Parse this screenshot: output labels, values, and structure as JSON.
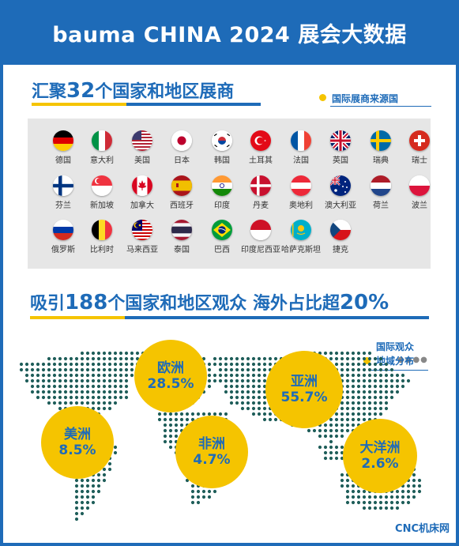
{
  "header": {
    "title": "bauma CHINA 2024 展会大数据"
  },
  "exhibitors": {
    "heading_pre": "汇聚",
    "heading_num": "32",
    "heading_post": "个国家和地区展商",
    "callout": "国际展商来源国",
    "countries": [
      {
        "name": "德国",
        "flag": "germany-flag"
      },
      {
        "name": "意大利",
        "flag": "italy-flag"
      },
      {
        "name": "美国",
        "flag": "usa-flag"
      },
      {
        "name": "日本",
        "flag": "japan-flag"
      },
      {
        "name": "韩国",
        "flag": "korea-flag"
      },
      {
        "name": "土耳其",
        "flag": "turkey-flag"
      },
      {
        "name": "法国",
        "flag": "france-flag"
      },
      {
        "name": "英国",
        "flag": "uk-flag"
      },
      {
        "name": "瑞典",
        "flag": "sweden-flag"
      },
      {
        "name": "瑞士",
        "flag": "switzerland-flag"
      },
      {
        "name": "芬兰",
        "flag": "finland-flag"
      },
      {
        "name": "新加坡",
        "flag": "singapore-flag"
      },
      {
        "name": "加拿大",
        "flag": "canada-flag"
      },
      {
        "name": "西班牙",
        "flag": "spain-flag"
      },
      {
        "name": "印度",
        "flag": "india-flag"
      },
      {
        "name": "丹麦",
        "flag": "denmark-flag"
      },
      {
        "name": "奥地利",
        "flag": "austria-flag"
      },
      {
        "name": "澳大利亚",
        "flag": "australia-flag"
      },
      {
        "name": "荷兰",
        "flag": "netherlands-flag"
      },
      {
        "name": "波兰",
        "flag": "poland-flag"
      },
      {
        "name": "俄罗斯",
        "flag": "russia-flag"
      },
      {
        "name": "比利时",
        "flag": "belgium-flag"
      },
      {
        "name": "马来西亚",
        "flag": "malaysia-flag"
      },
      {
        "name": "泰国",
        "flag": "thailand-flag"
      },
      {
        "name": "巴西",
        "flag": "brazil-flag"
      },
      {
        "name": "印度尼西亚",
        "flag": "indonesia-flag"
      },
      {
        "name": "哈萨克斯坦",
        "flag": "kazakhstan-flag"
      },
      {
        "name": "捷克",
        "flag": "czech-flag"
      }
    ],
    "more": "●●●●"
  },
  "visitors": {
    "heading_pre": "吸引",
    "heading_num": "188",
    "heading_mid": "个国家和地区观众 海外占比超",
    "heading_pct": "20%",
    "callout_line1": "国际观众",
    "callout_line2": "地域分布",
    "regions": [
      {
        "name": "欧洲",
        "value": "28.5%"
      },
      {
        "name": "亚洲",
        "value": "55.7%"
      },
      {
        "name": "美洲",
        "value": "8.5%"
      },
      {
        "name": "非洲",
        "value": "4.7%"
      },
      {
        "name": "大洋洲",
        "value": "2.6%"
      }
    ]
  },
  "colors": {
    "brand_blue": "#1e6bb8",
    "accent_yellow": "#f5c400",
    "map_dots": "#1f5e5a"
  },
  "watermark": "CNC机床网"
}
